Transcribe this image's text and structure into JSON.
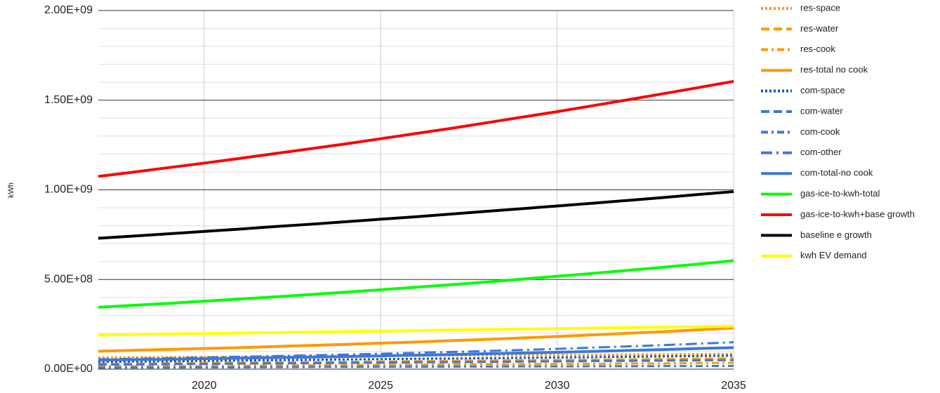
{
  "chart_data": {
    "type": "line",
    "y_label": "kWh",
    "x": [
      2017,
      2018,
      2019,
      2020,
      2021,
      2022,
      2023,
      2024,
      2025,
      2026,
      2027,
      2028,
      2029,
      2030,
      2031,
      2032,
      2033,
      2034,
      2035
    ],
    "xlim": [
      2017,
      2035
    ],
    "xticks": [
      2020,
      2025,
      2030,
      2035
    ],
    "ylim": [
      0,
      2000000000
    ],
    "yticks": [
      {
        "value": 0,
        "label": "0.00E+00"
      },
      {
        "value": 500000000,
        "label": "5.00E+08"
      },
      {
        "value": 1000000000,
        "label": "1.00E+09"
      },
      {
        "value": 1500000000,
        "label": "1.50E+09"
      },
      {
        "value": 2000000000,
        "label": "2.00E+09"
      }
    ],
    "yminorticks": [
      100000000,
      200000000,
      300000000,
      400000000,
      600000000,
      700000000,
      800000000,
      900000000,
      1100000000,
      1200000000,
      1300000000,
      1400000000,
      1600000000,
      1700000000,
      1800000000,
      1900000000
    ],
    "grid": true,
    "legend": "right",
    "series": [
      {
        "name": "res-space",
        "color": "#ff9900",
        "dash": "dotted",
        "values": [
          65000000.0,
          66000000.0,
          67000000.0,
          68000000.0,
          69000000.0,
          71000000.0,
          72000000.0,
          73000000.0,
          74000000.0,
          75000000.0,
          76000000.0,
          77000000.0,
          78000000.0,
          79000000.0,
          80000000.0,
          81000000.0,
          82000000.0,
          84000000.0,
          85000000.0
        ]
      },
      {
        "name": "res-water",
        "color": "#ff9900",
        "dash": "dashed",
        "values": [
          30000000.0,
          31000000.0,
          33000000.0,
          35000000.0,
          36000000.0,
          38000000.0,
          40000000.0,
          41000000.0,
          43000000.0,
          45000000.0,
          46000000.0,
          48000000.0,
          50000000.0,
          51000000.0,
          53000000.0,
          55000000.0,
          56000000.0,
          58000000.0,
          60000000.0
        ]
      },
      {
        "name": "res-cook",
        "color": "#ff9900",
        "dash": "dashdot",
        "values": [
          15000000.0,
          16000000.0,
          17000000.0,
          18000000.0,
          19000000.0,
          21000000.0,
          22000000.0,
          23000000.0,
          24000000.0,
          25000000.0,
          26000000.0,
          27000000.0,
          28000000.0,
          29000000.0,
          30000000.0,
          31000000.0,
          32000000.0,
          34000000.0,
          35000000.0
        ]
      },
      {
        "name": "res-total no cook",
        "color": "#ff9900",
        "dash": "solid",
        "values": [
          100000000.0,
          105000000.0,
          110000000.0,
          115000000.0,
          120000000.0,
          126000000.0,
          132000000.0,
          138000000.0,
          145000000.0,
          151000000.0,
          159000000.0,
          166000000.0,
          174000000.0,
          182000000.0,
          191000000.0,
          200000000.0,
          209000000.0,
          219000000.0,
          230000000.0
        ]
      },
      {
        "name": "com-space",
        "color": "#1155cc",
        "dash": "dotted",
        "values": [
          40000000.0,
          42000000.0,
          44000000.0,
          46000000.0,
          48000000.0,
          50000000.0,
          52000000.0,
          54000000.0,
          56000000.0,
          58000000.0,
          59000000.0,
          61000000.0,
          63000000.0,
          65000000.0,
          67000000.0,
          69000000.0,
          71000000.0,
          73000000.0,
          75000000.0
        ]
      },
      {
        "name": "com-water",
        "color": "#3c78d8",
        "dash": "dashed",
        "values": [
          25000000.0,
          26000000.0,
          28000000.0,
          29000000.0,
          31000000.0,
          32000000.0,
          33000000.0,
          35000000.0,
          36000000.0,
          38000000.0,
          39000000.0,
          40000000.0,
          42000000.0,
          43000000.0,
          45000000.0,
          46000000.0,
          47000000.0,
          49000000.0,
          50000000.0
        ]
      },
      {
        "name": "com-cook",
        "color": "#3c78d8",
        "dash": "dashdot",
        "values": [
          8000000.0,
          9000000.0,
          9000000.0,
          10000000.0,
          10000000.0,
          11000000.0,
          12000000.0,
          12000000.0,
          13000000.0,
          13000000.0,
          14000000.0,
          14000000.0,
          15000000.0,
          15000000.0,
          16000000.0,
          16000000.0,
          17000000.0,
          17000000.0,
          18000000.0
        ]
      },
      {
        "name": "com-other",
        "color": "#3c78d8",
        "dash": "longdashdot",
        "values": [
          55000000.0,
          58000000.0,
          61000000.0,
          65000000.0,
          69000000.0,
          73000000.0,
          77000000.0,
          81000000.0,
          86000000.0,
          91000000.0,
          96000000.0,
          101000000.0,
          107000000.0,
          113000000.0,
          120000000.0,
          127000000.0,
          134000000.0,
          142000000.0,
          150000000.0
        ]
      },
      {
        "name": "com-total-no cook",
        "color": "#3c78d8",
        "dash": "solid",
        "values": [
          50000000.0,
          53000000.0,
          55000000.0,
          58000000.0,
          61000000.0,
          64000000.0,
          67000000.0,
          70000000.0,
          74000000.0,
          78000000.0,
          81000000.0,
          86000000.0,
          90000000.0,
          94000000.0,
          99000000.0,
          104000000.0,
          109000000.0,
          115000000.0,
          120000000.0
        ]
      },
      {
        "name": "gas-ice-to-kwh-total",
        "color": "#00ff00",
        "dash": "solid",
        "values": [
          345000000.0,
          356000000.0,
          367000000.0,
          379000000.0,
          391000000.0,
          403000000.0,
          416000000.0,
          429000000.0,
          443000000.0,
          457000000.0,
          471000000.0,
          486000000.0,
          502000000.0,
          518000000.0,
          534000000.0,
          551000000.0,
          568000000.0,
          586000000.0,
          605000000.0
        ]
      },
      {
        "name": "gas-ice-to-kwh+base growth",
        "color": "#ff0000",
        "dash": "solid",
        "values": [
          1075000000.0,
          1099000000.0,
          1124000000.0,
          1149000000.0,
          1175000000.0,
          1202000000.0,
          1229000000.0,
          1256000000.0,
          1285000000.0,
          1314000000.0,
          1343000000.0,
          1374000000.0,
          1405000000.0,
          1436000000.0,
          1469000000.0,
          1502000000.0,
          1536000000.0,
          1570000000.0,
          1605000000.0
        ]
      },
      {
        "name": "baseline e growth",
        "color": "#000000",
        "dash": "solid",
        "values": [
          730000000.0,
          742000000.0,
          755000000.0,
          768000000.0,
          781000000.0,
          795000000.0,
          808000000.0,
          822000000.0,
          836000000.0,
          850000000.0,
          865000000.0,
          880000000.0,
          895000000.0,
          910000000.0,
          925000000.0,
          941000000.0,
          957000000.0,
          974000000.0,
          990000000.0
        ]
      },
      {
        "name": "kwh EV demand",
        "color": "#ffff00",
        "dash": "solid",
        "values": [
          190000000.0,
          193000000.0,
          196000000.0,
          198000000.0,
          201000000.0,
          204000000.0,
          207000000.0,
          210000000.0,
          212000000.0,
          215000000.0,
          218000000.0,
          221000000.0,
          223000000.0,
          226000000.0,
          229000000.0,
          232000000.0,
          234000000.0,
          237000000.0,
          240000000.0
        ]
      }
    ]
  }
}
